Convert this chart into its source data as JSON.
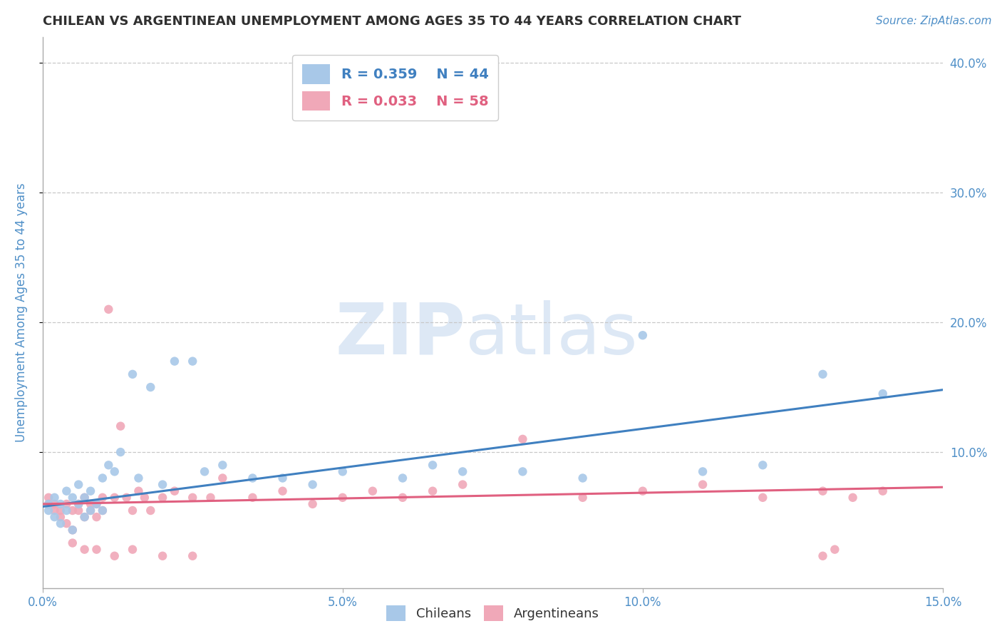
{
  "title": "CHILEAN VS ARGENTINEAN UNEMPLOYMENT AMONG AGES 35 TO 44 YEARS CORRELATION CHART",
  "source": "Source: ZipAtlas.com",
  "ylabel": "Unemployment Among Ages 35 to 44 years",
  "xlim": [
    0.0,
    0.15
  ],
  "ylim": [
    -0.005,
    0.42
  ],
  "yticks": [
    0.1,
    0.2,
    0.3,
    0.4
  ],
  "ytick_labels": [
    "10.0%",
    "20.0%",
    "30.0%",
    "40.0%"
  ],
  "xticks": [
    0.0,
    0.05,
    0.1,
    0.15
  ],
  "xtick_labels": [
    "0.0%",
    "5.0%",
    "10.0%",
    "15.0%"
  ],
  "chilean_color": "#a8c8e8",
  "argentinean_color": "#f0a8b8",
  "chilean_line_color": "#4080c0",
  "argentinean_line_color": "#e06080",
  "legend_R_chilean": "R = 0.359",
  "legend_N_chilean": "N = 44",
  "legend_R_argentinean": "R = 0.033",
  "legend_N_argentinean": "N = 58",
  "watermark_zip": "ZIP",
  "watermark_atlas": "atlas",
  "title_color": "#303030",
  "axis_label_color": "#5090c8",
  "tick_color": "#5090c8",
  "grid_color": "#c8c8c8",
  "chilean_x": [
    0.001,
    0.001,
    0.002,
    0.002,
    0.003,
    0.003,
    0.004,
    0.004,
    0.005,
    0.005,
    0.006,
    0.006,
    0.007,
    0.007,
    0.008,
    0.008,
    0.009,
    0.01,
    0.01,
    0.011,
    0.012,
    0.013,
    0.015,
    0.016,
    0.018,
    0.02,
    0.022,
    0.025,
    0.027,
    0.03,
    0.035,
    0.04,
    0.045,
    0.05,
    0.06,
    0.065,
    0.07,
    0.08,
    0.09,
    0.1,
    0.11,
    0.12,
    0.13,
    0.14
  ],
  "chilean_y": [
    0.055,
    0.06,
    0.05,
    0.065,
    0.045,
    0.06,
    0.055,
    0.07,
    0.04,
    0.065,
    0.06,
    0.075,
    0.05,
    0.065,
    0.055,
    0.07,
    0.06,
    0.08,
    0.055,
    0.09,
    0.085,
    0.1,
    0.16,
    0.08,
    0.15,
    0.075,
    0.17,
    0.17,
    0.085,
    0.09,
    0.08,
    0.08,
    0.075,
    0.085,
    0.08,
    0.09,
    0.085,
    0.085,
    0.08,
    0.19,
    0.085,
    0.09,
    0.16,
    0.145
  ],
  "argentinean_x": [
    0.001,
    0.001,
    0.002,
    0.002,
    0.003,
    0.003,
    0.004,
    0.004,
    0.005,
    0.005,
    0.006,
    0.006,
    0.007,
    0.007,
    0.008,
    0.008,
    0.009,
    0.009,
    0.01,
    0.01,
    0.011,
    0.012,
    0.013,
    0.014,
    0.015,
    0.016,
    0.017,
    0.018,
    0.02,
    0.022,
    0.025,
    0.028,
    0.03,
    0.035,
    0.04,
    0.045,
    0.05,
    0.055,
    0.06,
    0.065,
    0.07,
    0.08,
    0.09,
    0.1,
    0.11,
    0.12,
    0.13,
    0.135,
    0.14,
    0.005,
    0.007,
    0.009,
    0.012,
    0.015,
    0.02,
    0.025,
    0.13,
    0.132
  ],
  "argentinean_y": [
    0.06,
    0.065,
    0.055,
    0.06,
    0.05,
    0.055,
    0.045,
    0.06,
    0.04,
    0.055,
    0.06,
    0.055,
    0.05,
    0.065,
    0.06,
    0.055,
    0.05,
    0.06,
    0.055,
    0.065,
    0.21,
    0.065,
    0.12,
    0.065,
    0.055,
    0.07,
    0.065,
    0.055,
    0.065,
    0.07,
    0.065,
    0.065,
    0.08,
    0.065,
    0.07,
    0.06,
    0.065,
    0.07,
    0.065,
    0.07,
    0.075,
    0.11,
    0.065,
    0.07,
    0.075,
    0.065,
    0.07,
    0.065,
    0.07,
    0.03,
    0.025,
    0.025,
    0.02,
    0.025,
    0.02,
    0.02,
    0.02,
    0.025
  ],
  "chilean_trend_x": [
    0.0,
    0.15
  ],
  "chilean_trend_y": [
    0.058,
    0.148
  ],
  "argentinean_trend_x": [
    0.0,
    0.15
  ],
  "argentinean_trend_y": [
    0.06,
    0.073
  ]
}
